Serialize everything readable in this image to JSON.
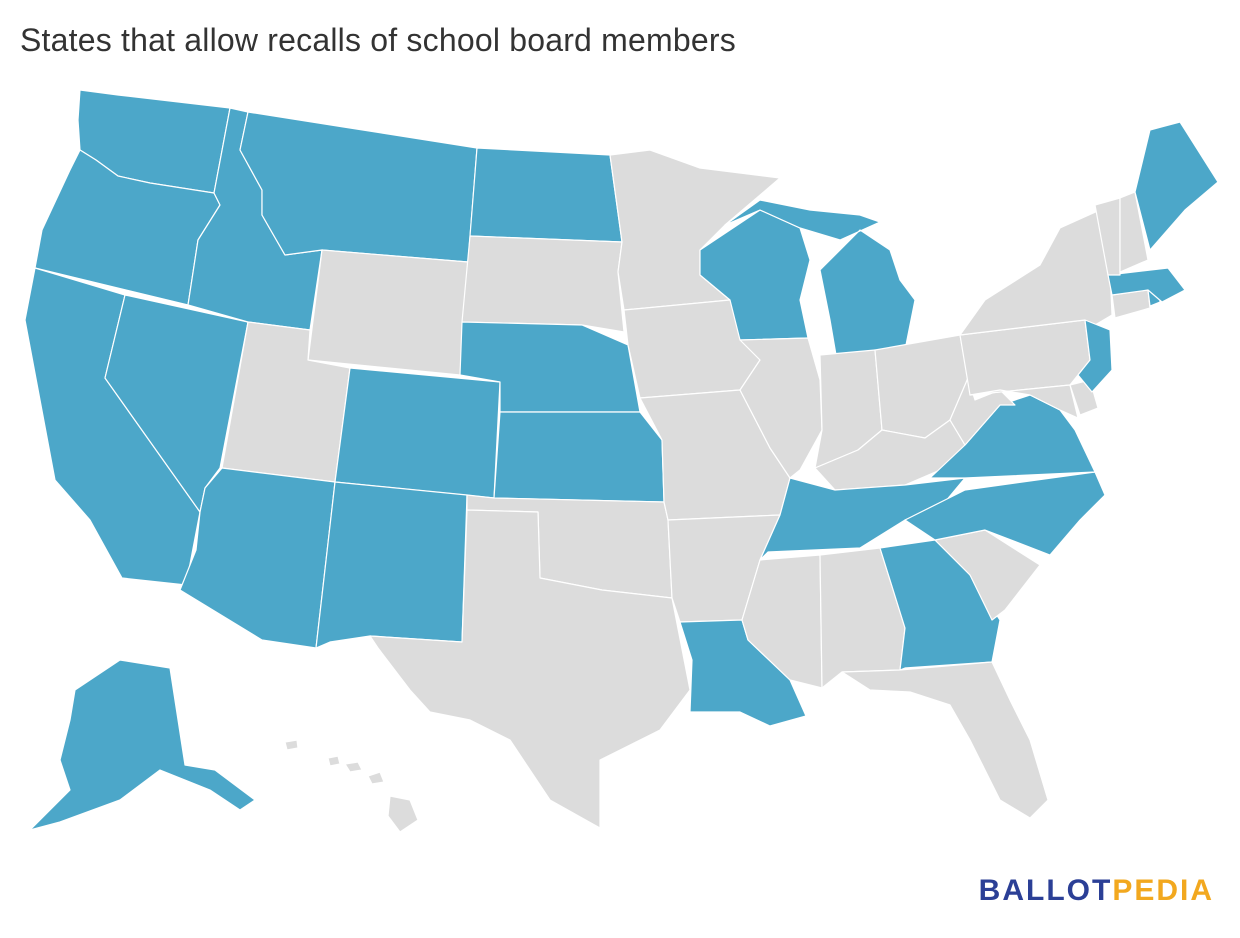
{
  "title": "States that allow recalls of school board members",
  "colors": {
    "allowed": "#4ca7c9",
    "not_allowed": "#dcdcdc",
    "border": "#ffffff",
    "logo_primary": "#2b3f96",
    "logo_accent": "#f2a81f"
  },
  "states_allowing_recall": [
    "AK",
    "AZ",
    "CA",
    "CO",
    "GA",
    "ID",
    "KS",
    "LA",
    "ME",
    "MA",
    "MI",
    "MT",
    "NE",
    "NV",
    "NJ",
    "NM",
    "NC",
    "ND",
    "OR",
    "RI",
    "TN",
    "VA",
    "WA",
    "WI"
  ],
  "logo": {
    "part1": "BALLOT",
    "part2": "PEDIA"
  }
}
